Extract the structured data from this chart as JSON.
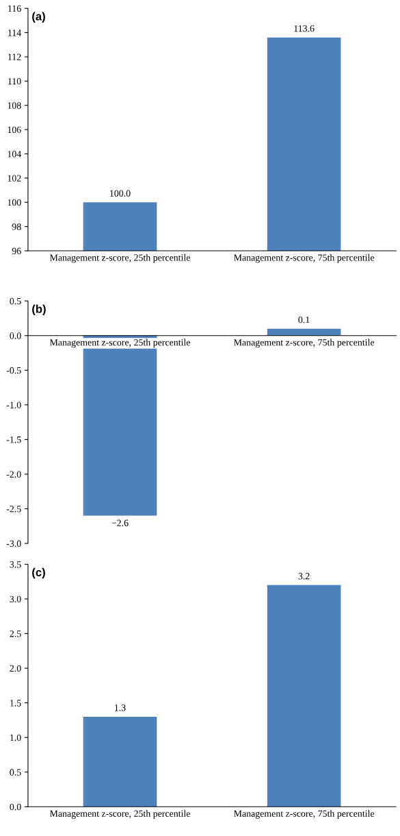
{
  "chart_data": [
    {
      "type": "bar",
      "annotations": [
        "(a)"
      ],
      "categories": [
        "Management z-score, 25th percentile",
        "Management z-score, 75th percentile"
      ],
      "values": [
        100.0,
        113.6
      ],
      "value_labels": [
        "100.0",
        "113.6"
      ],
      "color": "#4f81bd",
      "ylim": [
        96,
        116
      ],
      "yticks": [
        96,
        98,
        100,
        102,
        104,
        106,
        108,
        110,
        112,
        114,
        116
      ],
      "grid": false,
      "legend": false
    },
    {
      "type": "bar",
      "annotations": [
        "(b)"
      ],
      "categories": [
        "Management z-score, 25th percentile",
        "Management z-score, 75th percentile"
      ],
      "values": [
        -2.6,
        0.1
      ],
      "value_labels": [
        "−2.6",
        "0.1"
      ],
      "color": "#4f81bd",
      "ylim": [
        -3.0,
        0.5
      ],
      "yticks": [
        {
          "value": 0.5,
          "label": "0.5"
        },
        {
          "value": 0.0,
          "label": "0.0"
        },
        {
          "value": -0.5,
          "label": "-0.5"
        },
        {
          "value": -1.0,
          "label": "-1.0"
        },
        {
          "value": -1.5,
          "label": "-1.5"
        },
        {
          "value": -2.0,
          "label": "-2.0"
        },
        {
          "value": -2.5,
          "label": "-2.5"
        },
        {
          "value": -3.0,
          "label": "-3.0"
        }
      ],
      "grid": false,
      "legend": false
    },
    {
      "type": "bar",
      "annotations": [
        "(c)"
      ],
      "categories": [
        "Management z-score, 25th percentile",
        "Management z-score, 75th percentile"
      ],
      "values": [
        1.3,
        3.2
      ],
      "value_labels": [
        "1.3",
        "3.2"
      ],
      "color": "#4f81bd",
      "ylim": [
        0.0,
        3.5
      ],
      "yticks": [
        {
          "value": 0.0,
          "label": "0.0"
        },
        {
          "value": 0.5,
          "label": "0.5"
        },
        {
          "value": 1.0,
          "label": "1.0"
        },
        {
          "value": 1.5,
          "label": "1.5"
        },
        {
          "value": 2.0,
          "label": "2.0"
        },
        {
          "value": 2.5,
          "label": "2.5"
        },
        {
          "value": 3.0,
          "label": "3.0"
        },
        {
          "value": 3.5,
          "label": "3.5"
        }
      ],
      "grid": false,
      "legend": false
    }
  ]
}
